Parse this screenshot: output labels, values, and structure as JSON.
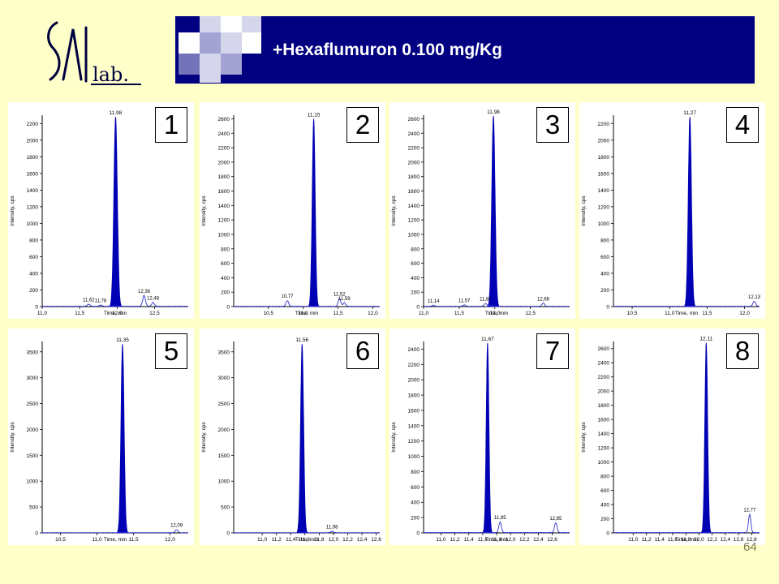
{
  "header": {
    "logo_text": "SAL lab.",
    "title": "+Hexaflumuron 0.100 mg/Kg",
    "colors": {
      "banner": "#000080",
      "squares": [
        "#ffffff",
        "#d5d5ec",
        "#a3a3d3",
        "#7373b9"
      ]
    }
  },
  "page_number": "64",
  "colors": {
    "background": "#FFFFC9",
    "peak": "#0000B4",
    "trace": "#3333cc"
  },
  "chart_data": [
    {
      "type": "line",
      "panel_label": "1",
      "xlabel": "Time, min",
      "ylabel": "Intensity, cps",
      "xlim": [
        11.0,
        12.95
      ],
      "ylim": [
        0,
        2300
      ],
      "xticks": [
        "11,0",
        "11,5",
        "12,0",
        "12,5"
      ],
      "xtick_values": [
        11.0,
        11.5,
        12.0,
        12.5
      ],
      "yticks": [
        "0",
        "200",
        "400",
        "600",
        "800",
        "1000",
        "1200",
        "1400",
        "1600",
        "1800",
        "2000",
        "2200"
      ],
      "ytick_values": [
        0,
        200,
        400,
        600,
        800,
        1000,
        1200,
        1400,
        1600,
        1800,
        2000,
        2200
      ],
      "peak": {
        "rt": 11.98,
        "label": "11,98",
        "height": 2280,
        "width": 0.06
      },
      "minor_peaks": [
        {
          "rt": 11.62,
          "label": "11,62",
          "height": 25
        },
        {
          "rt": 11.78,
          "label": "11,78",
          "height": 15
        },
        {
          "rt": 12.36,
          "label": "12,36",
          "height": 130
        },
        {
          "rt": 12.48,
          "label": "12,48",
          "height": 45
        }
      ]
    },
    {
      "type": "line",
      "panel_label": "2",
      "xlabel": "Time, min",
      "ylabel": "Intensity, cps",
      "xlim": [
        10.0,
        12.1
      ],
      "ylim": [
        0,
        2650
      ],
      "xticks": [
        "10,5",
        "11,0",
        "11,5",
        "12,0"
      ],
      "xtick_values": [
        10.5,
        11.0,
        11.5,
        12.0
      ],
      "yticks": [
        "0",
        "200",
        "400",
        "600",
        "800",
        "1000",
        "1200",
        "1400",
        "1600",
        "1800",
        "2000",
        "2200",
        "2400",
        "2600"
      ],
      "ytick_values": [
        0,
        200,
        400,
        600,
        800,
        1000,
        1200,
        1400,
        1600,
        1800,
        2000,
        2200,
        2400,
        2600
      ],
      "peak": {
        "rt": 11.15,
        "label": "11,15",
        "height": 2600,
        "width": 0.055
      },
      "minor_peaks": [
        {
          "rt": 10.77,
          "label": "10,77",
          "height": 80
        },
        {
          "rt": 11.52,
          "label": "11,52",
          "height": 110
        },
        {
          "rt": 11.59,
          "label": "11,59",
          "height": 50
        }
      ]
    },
    {
      "type": "line",
      "panel_label": "3",
      "xlabel": "Time, min",
      "ylabel": "Intensity, cps",
      "xlim": [
        11.0,
        13.05
      ],
      "ylim": [
        0,
        2650
      ],
      "xticks": [
        "11,0",
        "11,5",
        "12,0",
        "12,5"
      ],
      "xtick_values": [
        11.0,
        11.5,
        12.0,
        12.5
      ],
      "yticks": [
        "0",
        "200",
        "400",
        "600",
        "800",
        "1000",
        "1200",
        "1400",
        "1600",
        "1800",
        "2000",
        "2200",
        "2400",
        "2600"
      ],
      "ytick_values": [
        0,
        200,
        400,
        600,
        800,
        1000,
        1200,
        1400,
        1600,
        1800,
        2000,
        2200,
        2400,
        2600
      ],
      "peak": {
        "rt": 11.98,
        "label": "11,98",
        "height": 2640,
        "width": 0.06
      },
      "minor_peaks": [
        {
          "rt": 11.14,
          "label": "11,14",
          "height": 15
        },
        {
          "rt": 11.57,
          "label": "11,57",
          "height": 20
        },
        {
          "rt": 11.87,
          "label": "11,87",
          "height": 40
        },
        {
          "rt": 12.68,
          "label": "12,68",
          "height": 45
        }
      ]
    },
    {
      "type": "line",
      "panel_label": "4",
      "xlabel": "Time, min",
      "ylabel": "Intensity, cps",
      "xlim": [
        10.25,
        12.2
      ],
      "ylim": [
        0,
        2300
      ],
      "xticks": [
        "10,5",
        "11,0",
        "11,5",
        "12,0"
      ],
      "xtick_values": [
        10.5,
        11.0,
        11.5,
        12.0
      ],
      "yticks": [
        "0",
        "200",
        "400",
        "600",
        "800",
        "1000",
        "1200",
        "1400",
        "1600",
        "1800",
        "2000",
        "2200"
      ],
      "ytick_values": [
        0,
        200,
        400,
        600,
        800,
        1000,
        1200,
        1400,
        1600,
        1800,
        2000,
        2200
      ],
      "peak": {
        "rt": 11.27,
        "label": "11,27",
        "height": 2280,
        "width": 0.055
      },
      "minor_peaks": [
        {
          "rt": 12.13,
          "label": "12,13",
          "height": 60
        }
      ]
    },
    {
      "type": "line",
      "panel_label": "5",
      "xlabel": "Time, min",
      "ylabel": "Intensity, cps",
      "xlim": [
        10.25,
        12.25
      ],
      "ylim": [
        0,
        3700
      ],
      "xticks": [
        "10,5",
        "11,0",
        "11,5",
        "12,0"
      ],
      "xtick_values": [
        10.5,
        11.0,
        11.5,
        12.0
      ],
      "yticks": [
        "0",
        "500",
        "1000",
        "1500",
        "2000",
        "2500",
        "3000",
        "3500"
      ],
      "ytick_values": [
        0,
        500,
        1000,
        1500,
        2000,
        2500,
        3000,
        3500
      ],
      "peak": {
        "rt": 11.35,
        "label": "11,35",
        "height": 3650,
        "width": 0.055
      },
      "minor_peaks": [
        {
          "rt": 12.09,
          "label": "12,09",
          "height": 60
        }
      ]
    },
    {
      "type": "line",
      "panel_label": "6",
      "xlabel": "Time, min",
      "ylabel": "Intensity, cps",
      "xlim": [
        10.6,
        12.65
      ],
      "ylim": [
        0,
        3700
      ],
      "xticks": [
        "11,0",
        "11,2",
        "11,4",
        "11,6",
        "11,8",
        "12,0",
        "12,2",
        "12,4",
        "12,6"
      ],
      "xtick_values": [
        11.0,
        11.2,
        11.4,
        11.6,
        11.8,
        12.0,
        12.2,
        12.4,
        12.6
      ],
      "yticks": [
        "0",
        "500",
        "1000",
        "1500",
        "2000",
        "2500",
        "3000",
        "3500"
      ],
      "ytick_values": [
        0,
        500,
        1000,
        1500,
        2000,
        2500,
        3000,
        3500
      ],
      "peak": {
        "rt": 11.56,
        "label": "11,56",
        "height": 3650,
        "width": 0.055
      },
      "minor_peaks": [
        {
          "rt": 11.98,
          "label": "11,98",
          "height": 30
        }
      ]
    },
    {
      "type": "line",
      "panel_label": "7",
      "xlabel": "Time, min",
      "ylabel": "Intensity, cps",
      "xlim": [
        10.75,
        12.85
      ],
      "ylim": [
        0,
        2500
      ],
      "xticks": [
        "11,0",
        "11,2",
        "11,4",
        "11,6",
        "11,8",
        "12,0",
        "12,2",
        "12,4",
        "12,6"
      ],
      "xtick_values": [
        11.0,
        11.2,
        11.4,
        11.6,
        11.8,
        12.0,
        12.2,
        12.4,
        12.6
      ],
      "yticks": [
        "0",
        "200",
        "400",
        "600",
        "800",
        "1000",
        "1200",
        "1400",
        "1600",
        "1800",
        "2000",
        "2200",
        "2400"
      ],
      "ytick_values": [
        0,
        200,
        400,
        600,
        800,
        1000,
        1200,
        1400,
        1600,
        1800,
        2000,
        2200,
        2400
      ],
      "peak": {
        "rt": 11.67,
        "label": "11,67",
        "height": 2480,
        "width": 0.05
      },
      "minor_peaks": [
        {
          "rt": 11.85,
          "label": "11,85",
          "height": 140
        },
        {
          "rt": 12.65,
          "label": "12,65",
          "height": 130
        }
      ]
    },
    {
      "type": "line",
      "panel_label": "8",
      "xlabel": "Time, min",
      "ylabel": "Intensity, cps",
      "xlim": [
        10.7,
        12.92
      ],
      "ylim": [
        0,
        2700
      ],
      "xticks": [
        "11,0",
        "11,2",
        "11,4",
        "11,6",
        "11,8",
        "12,0",
        "12,2",
        "12,4",
        "12,6",
        "12,8"
      ],
      "xtick_values": [
        11.0,
        11.2,
        11.4,
        11.6,
        11.8,
        12.0,
        12.2,
        12.4,
        12.6,
        12.8
      ],
      "yticks": [
        "0",
        "200",
        "400",
        "600",
        "800",
        "1000",
        "1200",
        "1400",
        "1600",
        "1800",
        "2000",
        "2200",
        "2400",
        "2600"
      ],
      "ytick_values": [
        0,
        200,
        400,
        600,
        800,
        1000,
        1200,
        1400,
        1600,
        1800,
        2000,
        2200,
        2400,
        2600
      ],
      "peak": {
        "rt": 12.11,
        "label": "12,11",
        "height": 2680,
        "width": 0.055
      },
      "minor_peaks": [
        {
          "rt": 12.77,
          "label": "12,77",
          "height": 260
        }
      ]
    }
  ]
}
